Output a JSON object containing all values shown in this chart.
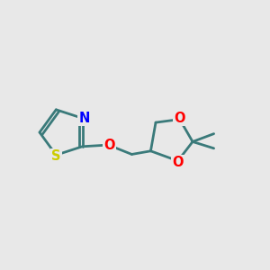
{
  "background_color": "#e8e8e8",
  "bond_color": "#3a7a7a",
  "N_color": "#0000ff",
  "S_color": "#cccc00",
  "O_color": "#ff0000",
  "line_width": 2.0,
  "font_size": 10.5,
  "xlim": [
    0,
    10
  ],
  "ylim": [
    0,
    10
  ]
}
